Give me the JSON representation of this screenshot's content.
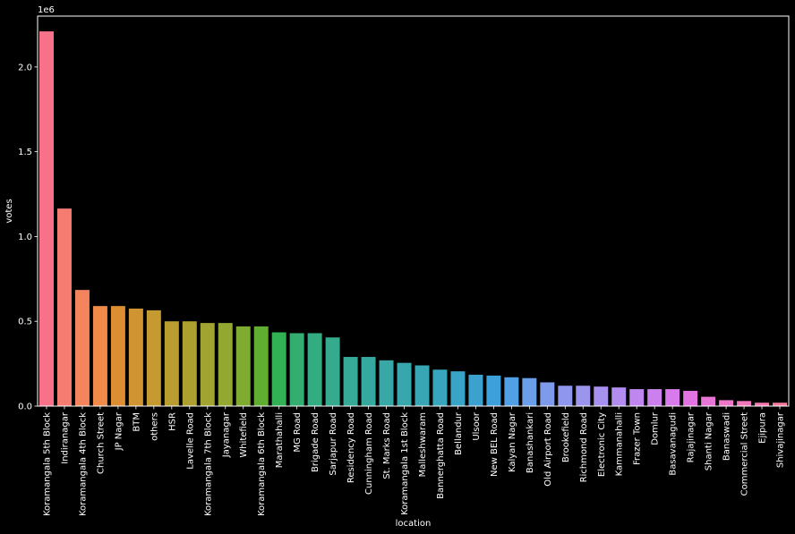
{
  "chart_data": {
    "type": "bar",
    "xlabel": "location",
    "ylabel": "votes",
    "offset_label": "1e6",
    "ylim": [
      0,
      2300000
    ],
    "yticks": [
      0,
      500000,
      1000000,
      1500000,
      2000000
    ],
    "ytick_labels": [
      "0.0",
      "0.5",
      "1.0",
      "1.5",
      "2.0"
    ],
    "grid": false,
    "categories": [
      "Koramangala 5th Block",
      "Indiranagar",
      "Koramangala 4th Block",
      "Church Street",
      "JP Nagar",
      "BTM",
      "others",
      "HSR",
      "Lavelle Road",
      "Koramangala 7th Block",
      "Jayanagar",
      "Whitefield",
      "Koramangala 6th Block",
      "Marathahalli",
      "MG Road",
      "Brigade Road",
      "Sarjapur Road",
      "Residency Road",
      "Cunningham Road",
      "St. Marks Road",
      "Koramangala 1st Block",
      "Malleshwaram",
      "Bannerghatta Road",
      "Bellandur",
      "Ulsoor",
      "New BEL Road",
      "Kalyan Nagar",
      "Banashankari",
      "Old Airport Road",
      "Brookefield",
      "Richmond Road",
      "Electronic City",
      "Kammanahalli",
      "Frazer Town",
      "Domlur",
      "Basavanagudi",
      "Rajajinagar",
      "Shanti Nagar",
      "Banaswadi",
      "Commercial Street",
      "Ejipura",
      "Shivajinagar"
    ],
    "values": [
      2210000,
      1165000,
      685000,
      590000,
      590000,
      575000,
      565000,
      500000,
      500000,
      490000,
      490000,
      470000,
      470000,
      435000,
      430000,
      430000,
      405000,
      290000,
      290000,
      270000,
      255000,
      240000,
      215000,
      205000,
      185000,
      180000,
      170000,
      165000,
      140000,
      120000,
      120000,
      115000,
      110000,
      100000,
      100000,
      100000,
      90000,
      55000,
      35000,
      30000,
      20000,
      20000
    ],
    "colors": [
      "#f77189",
      "#f67c72",
      "#f4845e",
      "#ef8a49",
      "#dd8d32",
      "#d09432",
      "#c59a31",
      "#b99d31",
      "#ae9f31",
      "#a1a431",
      "#92a831",
      "#7fab31",
      "#60ae31",
      "#32b054",
      "#33ae70",
      "#34ac81",
      "#35aa8d",
      "#36aa96",
      "#36a99e",
      "#37a8a6",
      "#38a7ad",
      "#38a6b4",
      "#39a5bd",
      "#3aa4c6",
      "#3ba2d0",
      "#3da0db",
      "#51a0e5",
      "#6b9ee8",
      "#7e9aeb",
      "#8e97ed",
      "#9b95ee",
      "#a791ef",
      "#b38cef",
      "#bf86ef",
      "#cb80ee",
      "#d77aec",
      "#e173e2",
      "#e874d6",
      "#ec76ca",
      "#ef78bd",
      "#f37aaf",
      "#f57ba0"
    ]
  }
}
